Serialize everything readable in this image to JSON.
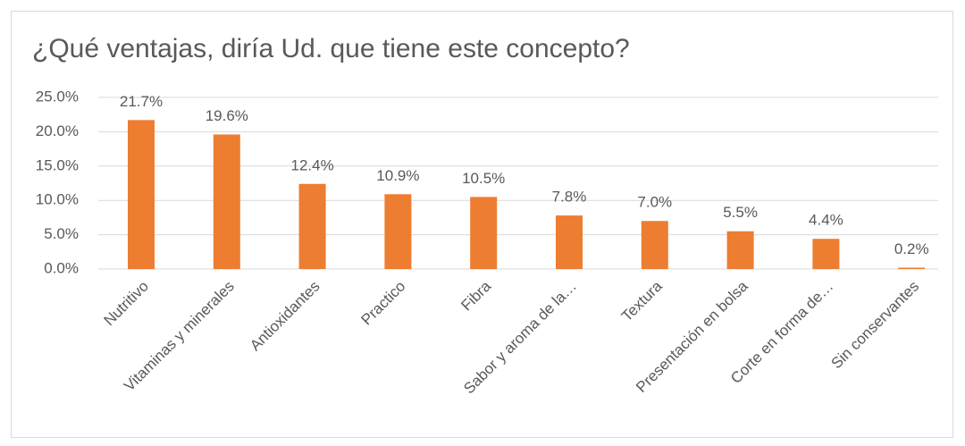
{
  "chart_data": {
    "type": "bar",
    "title": "¿Qué ventajas, diría Ud. que tiene este concepto?",
    "categories": [
      "Nutritivo",
      "Vitaminas y minerales",
      "Antioxidantes",
      "Practico",
      "Fibra",
      "Sabor y aroma de la…",
      "Textura",
      "Presentación en bolsa",
      "Corte en forma de…",
      "Sin conservantes"
    ],
    "values": [
      21.7,
      19.6,
      12.4,
      10.9,
      10.5,
      7.8,
      7.0,
      5.5,
      4.4,
      0.2
    ],
    "value_labels": [
      "21.7%",
      "19.6%",
      "12.4%",
      "10.9%",
      "10.5%",
      "7.8%",
      "7.0%",
      "5.5%",
      "4.4%",
      "0.2%"
    ],
    "color": "#ed7d31",
    "ylim": [
      0,
      25
    ],
    "yticks": [
      {
        "value": 0,
        "label": "0.0%"
      },
      {
        "value": 5,
        "label": "5.0%"
      },
      {
        "value": 10,
        "label": "10.0%"
      },
      {
        "value": 15,
        "label": "15.0%"
      },
      {
        "value": 20,
        "label": "20.0%"
      },
      {
        "value": 25,
        "label": "25.0%"
      }
    ],
    "grid": true
  }
}
